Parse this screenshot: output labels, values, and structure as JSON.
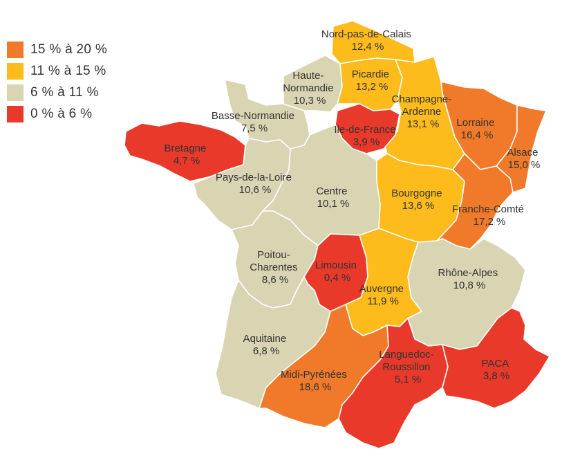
{
  "colors": {
    "c15_20": "#f07a2a",
    "c11_15": "#fdbb1c",
    "c6_11": "#d9d4b2",
    "c0_6": "#e8392a"
  },
  "legend": [
    {
      "label": "15 % à 20 %",
      "color": "#f07a2a"
    },
    {
      "label": "11 % à 15 %",
      "color": "#fdbb1c"
    },
    {
      "label": "6 % à 11 %",
      "color": "#d9d4b2"
    },
    {
      "label": "0 % à 6 %",
      "color": "#e8392a"
    }
  ],
  "regions": {
    "nord": {
      "name": "Nord-pas-de-Calais",
      "value": "12,4 %"
    },
    "picardie": {
      "name": "Picardie",
      "value": "13,2 %"
    },
    "haute_normandie": {
      "name_line1": "Haute-",
      "name_line2": "Normandie",
      "value": "10,3 %"
    },
    "basse_normandie": {
      "name": "Basse-Normandie",
      "value": "7,5 %"
    },
    "champagne": {
      "name_line1": "Champagne-",
      "name_line2": "Ardenne",
      "value": "13,1 %"
    },
    "lorraine": {
      "name": "Lorraine",
      "value": "16,4 %"
    },
    "alsace": {
      "name": "Alsace",
      "value": "15,0 %"
    },
    "idf": {
      "name": "Ile-de-France",
      "value": "3,9 %"
    },
    "bretagne": {
      "name": "Bretagne",
      "value": "4,7 %"
    },
    "pdl": {
      "name": "Pays-de-la-Loire",
      "value": "10,6 %"
    },
    "centre": {
      "name": "Centre",
      "value": "10,1 %"
    },
    "bourgogne": {
      "name": "Bourgogne",
      "value": "13,6 %"
    },
    "franche_comte": {
      "name": "Franche-Comté",
      "value": "17,2 %"
    },
    "poitou": {
      "name_line1": "Poitou-",
      "name_line2": "Charentes",
      "value": "8,6 %"
    },
    "limousin": {
      "name": "Limousin",
      "value": "0,4 %"
    },
    "auvergne": {
      "name": "Auvergne",
      "value": "11,9 %"
    },
    "rhone_alpes": {
      "name": "Rhône-Alpes",
      "value": "10,8 %"
    },
    "aquitaine": {
      "name": "Aquitaine",
      "value": "6,8 %"
    },
    "midi_pyrenees": {
      "name": "Midi-Pyrénées",
      "value": "18,6 %"
    },
    "languedoc": {
      "name_line1": "Languedoc-",
      "name_line2": "Roussillon",
      "value": "5,1 %"
    },
    "paca": {
      "name": "PACA",
      "value": "3,8 %"
    }
  }
}
